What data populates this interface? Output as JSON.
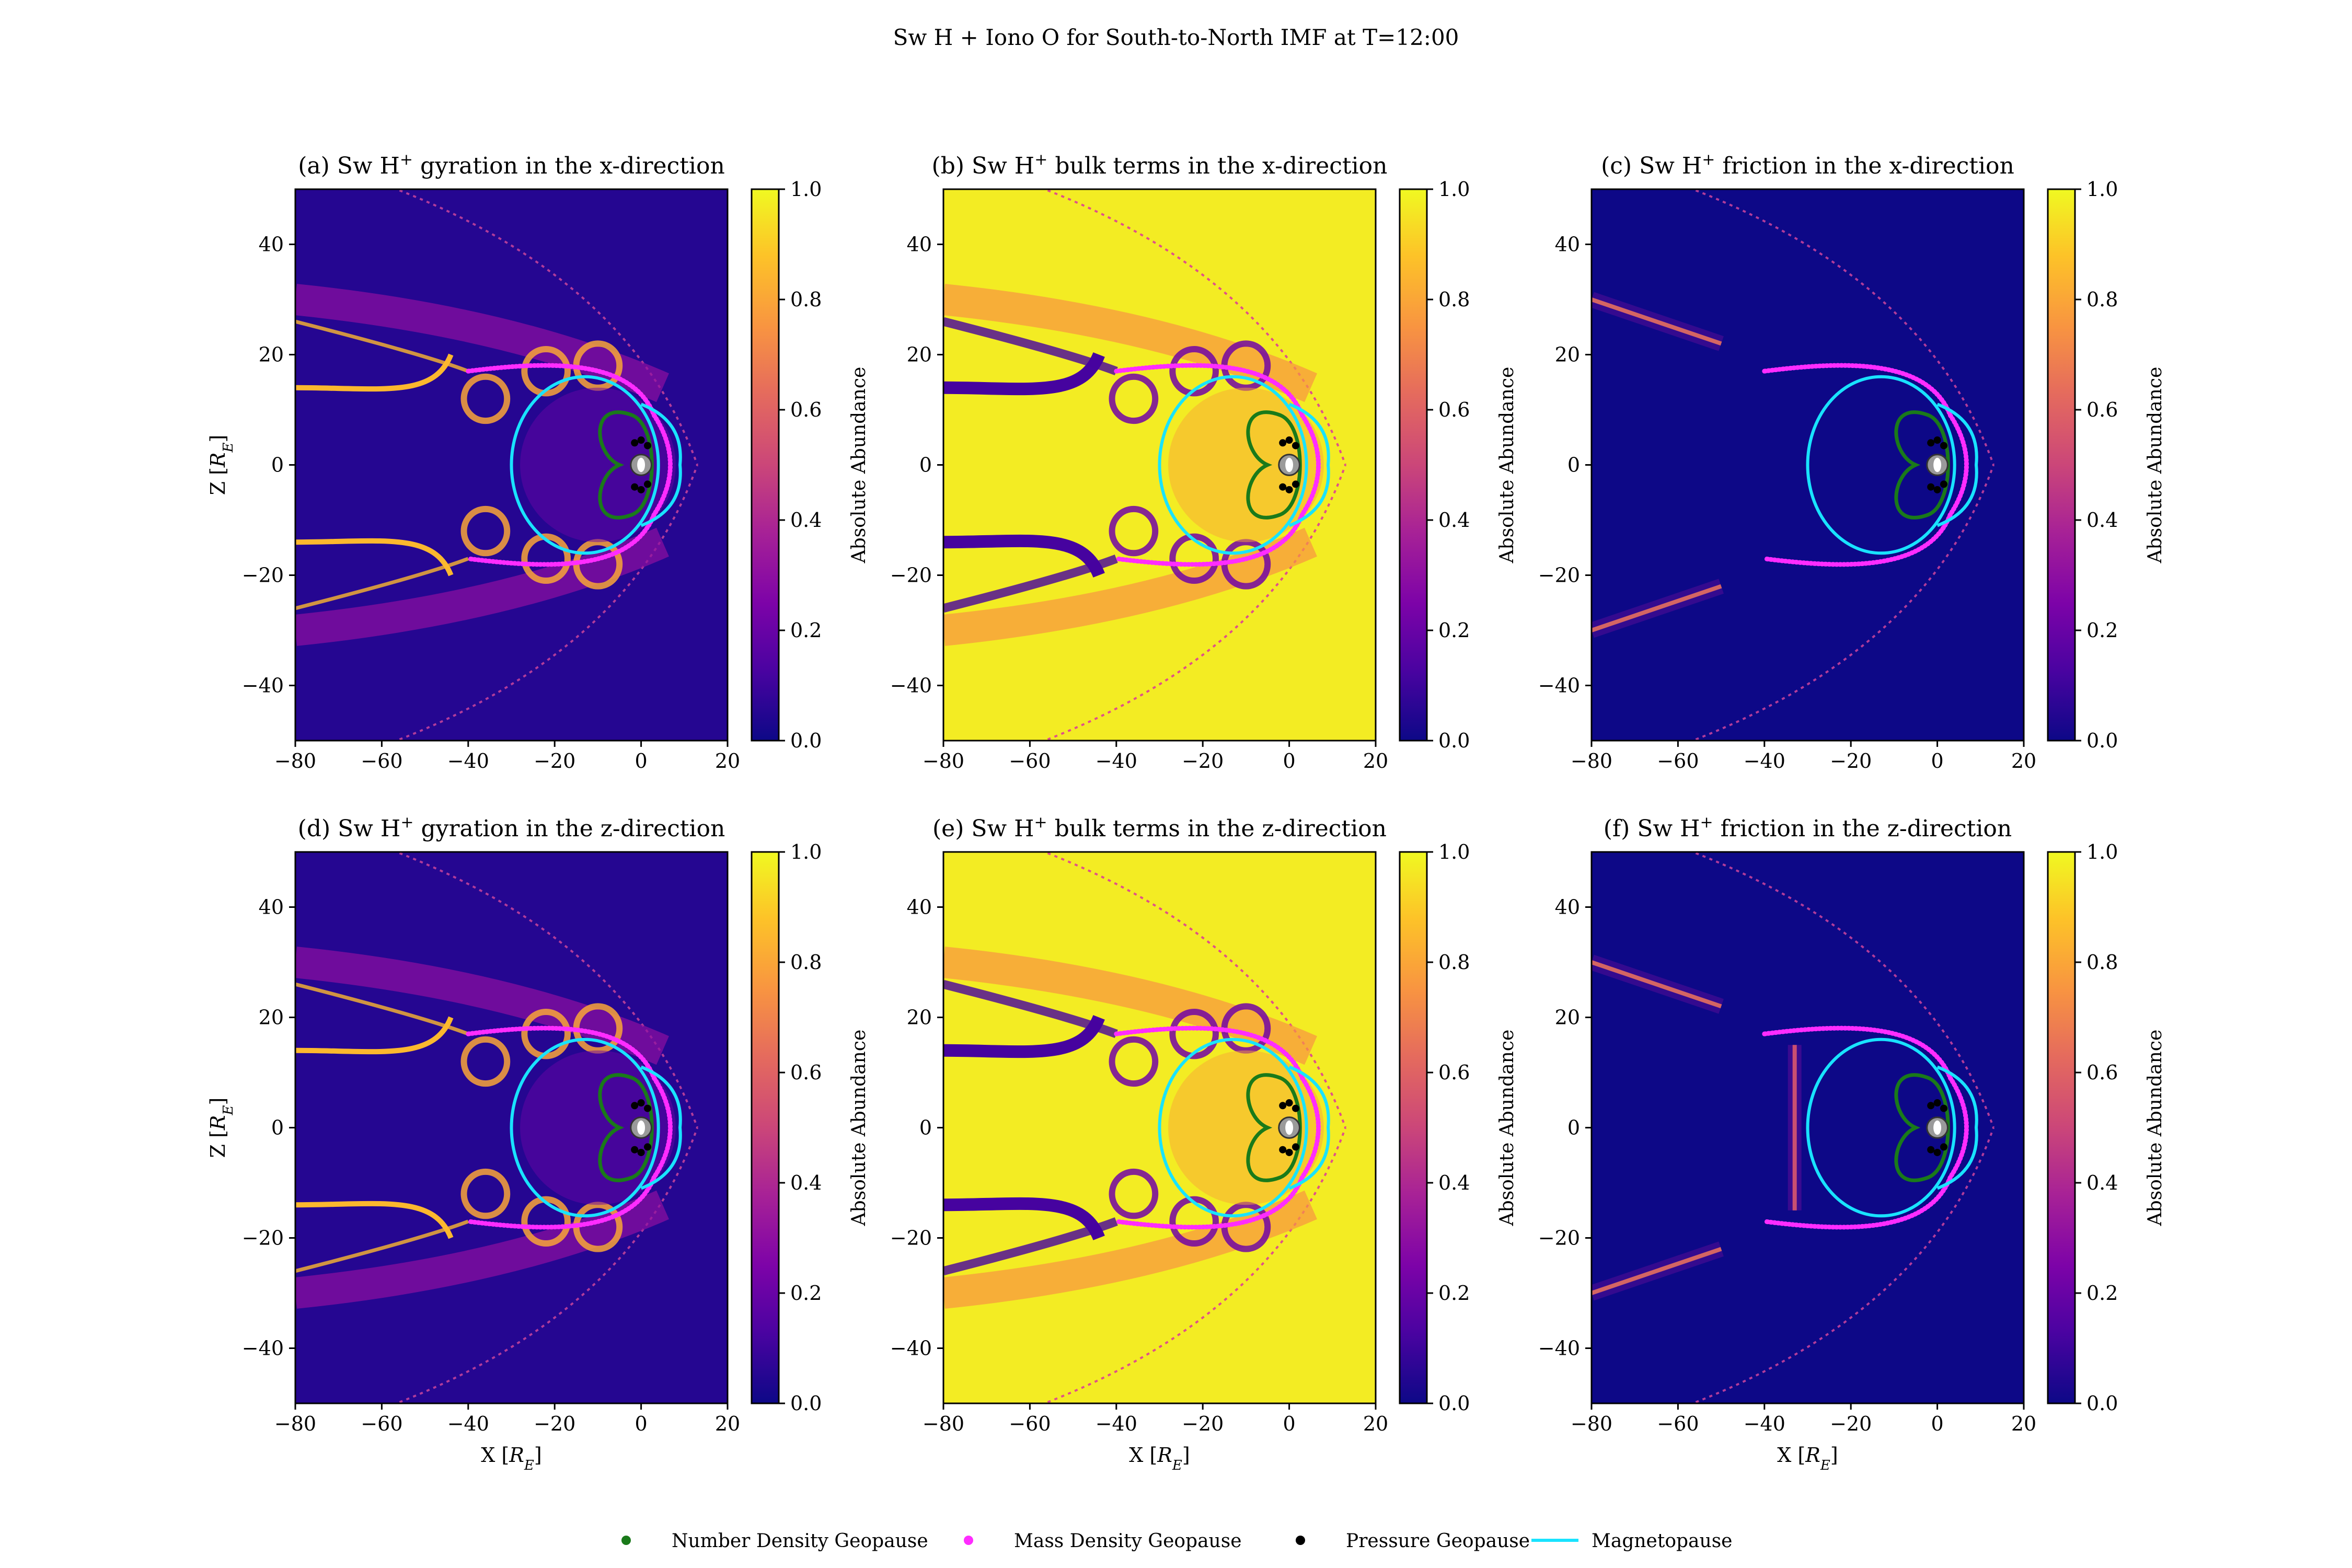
{
  "figure": {
    "title": "Sw H + Iono O for South-to-North IMF at T=12:00",
    "legend": [
      {
        "label": "Number Density Geopause",
        "marker": "dot",
        "color": "#1a7a1a"
      },
      {
        "label": "Mass Density Geopause",
        "marker": "dot",
        "color": "#ff2cff"
      },
      {
        "label": "Pressure Geopause",
        "marker": "dot",
        "color": "#000000"
      },
      {
        "label": "Magnetopause",
        "marker": "line",
        "color": "#19e3ff"
      }
    ]
  },
  "chart_data": [
    {
      "type": "heatmap",
      "panel": "a",
      "title": "(a) Sw H+ gyration in the x-direction",
      "title_parts": [
        "(a) Sw H",
        "+",
        " gyration in the x-direction"
      ],
      "xlabel": "",
      "ylabel": "Z [R_E]",
      "xlim": [
        -80,
        20
      ],
      "ylim": [
        -50,
        50
      ],
      "xticks": [
        -80,
        -60,
        -40,
        -20,
        0,
        20
      ],
      "yticks": [
        -40,
        -20,
        0,
        20,
        40
      ],
      "colorbar": {
        "label": "Absolute Abundance",
        "range": [
          0.0,
          1.0
        ],
        "ticks": [
          "0.0",
          "0.2",
          "0.4",
          "0.6",
          "0.8",
          "1.0"
        ],
        "colormap": "plasma"
      },
      "background_level": 0.05,
      "magnetopause_standoff_x": 9,
      "features": [
        "tail streaks at Z=±14",
        "bright cusp regions near X=-35"
      ]
    },
    {
      "type": "heatmap",
      "panel": "b",
      "title": "(b) Sw H+ bulk terms in the x-direction",
      "title_parts": [
        "(b) Sw H",
        "+",
        " bulk terms in the x-direction"
      ],
      "xlabel": "",
      "ylabel": "",
      "xlim": [
        -80,
        20
      ],
      "ylim": [
        -50,
        50
      ],
      "xticks": [
        -80,
        -60,
        -40,
        -20,
        0,
        20
      ],
      "yticks": [
        -40,
        -20,
        0,
        20,
        40
      ],
      "colorbar": {
        "label": "Absolute Abundance",
        "range": [
          0.0,
          1.0
        ],
        "ticks": [
          "0.0",
          "0.2",
          "0.4",
          "0.6",
          "0.8",
          "1.0"
        ],
        "colormap": "plasma"
      },
      "background_level": 0.97,
      "magnetopause_standoff_x": 9,
      "features": [
        "dark tail lanes",
        "dark cusp patches"
      ]
    },
    {
      "type": "heatmap",
      "panel": "c",
      "title": "(c) Sw H+ friction in the x-direction",
      "title_parts": [
        "(c) Sw H",
        "+",
        " friction in the x-direction"
      ],
      "xlabel": "",
      "ylabel": "",
      "xlim": [
        -80,
        20
      ],
      "ylim": [
        -50,
        50
      ],
      "xticks": [
        -80,
        -60,
        -40,
        -20,
        0,
        20
      ],
      "yticks": [
        -40,
        -20,
        0,
        20,
        40
      ],
      "colorbar": {
        "label": "Absolute Abundance",
        "range": [
          0.0,
          1.0
        ],
        "ticks": [
          "0.0",
          "0.2",
          "0.4",
          "0.6",
          "0.8",
          "1.0"
        ],
        "colormap": "plasma"
      },
      "background_level": 0.0,
      "magnetopause_standoff_x": 9,
      "features": [
        "thin diagonal streaks at far tail"
      ]
    },
    {
      "type": "heatmap",
      "panel": "d",
      "title": "(d) Sw H+ gyration in the z-direction",
      "title_parts": [
        "(d) Sw H",
        "+",
        " gyration in the z-direction"
      ],
      "xlabel": "X [R_E]",
      "ylabel": "Z [R_E]",
      "xlim": [
        -80,
        20
      ],
      "ylim": [
        -50,
        50
      ],
      "xticks": [
        -80,
        -60,
        -40,
        -20,
        0,
        20
      ],
      "yticks": [
        -40,
        -20,
        0,
        20,
        40
      ],
      "colorbar": {
        "label": "Absolute Abundance",
        "range": [
          0.0,
          1.0
        ],
        "ticks": [
          "0.0",
          "0.2",
          "0.4",
          "0.6",
          "0.8",
          "1.0"
        ],
        "colormap": "plasma"
      },
      "background_level": 0.05,
      "magnetopause_standoff_x": 9,
      "features": [
        "tail streaks at Z=±14",
        "bright cusp regions"
      ]
    },
    {
      "type": "heatmap",
      "panel": "e",
      "title": "(e) Sw H+ bulk terms in the z-direction",
      "title_parts": [
        "(e) Sw H",
        "+",
        " bulk terms in the z-direction"
      ],
      "xlabel": "X [R_E]",
      "ylabel": "",
      "xlim": [
        -80,
        20
      ],
      "ylim": [
        -50,
        50
      ],
      "xticks": [
        -80,
        -60,
        -40,
        -20,
        0,
        20
      ],
      "yticks": [
        -40,
        -20,
        0,
        20,
        40
      ],
      "colorbar": {
        "label": "Absolute Abundance",
        "range": [
          0.0,
          1.0
        ],
        "ticks": [
          "0.0",
          "0.2",
          "0.4",
          "0.6",
          "0.8",
          "1.0"
        ],
        "colormap": "plasma"
      },
      "background_level": 0.97,
      "magnetopause_standoff_x": 9,
      "features": [
        "dark tail lanes",
        "dark cusp patches"
      ]
    },
    {
      "type": "heatmap",
      "panel": "f",
      "title": "(f) Sw H+ friction in the z-direction",
      "title_parts": [
        "(f) Sw H",
        "+",
        " friction in the z-direction"
      ],
      "xlabel": "X [R_E]",
      "ylabel": "",
      "xlim": [
        -80,
        20
      ],
      "ylim": [
        -50,
        50
      ],
      "xticks": [
        -80,
        -60,
        -40,
        -20,
        0,
        20
      ],
      "yticks": [
        -40,
        -20,
        0,
        20,
        40
      ],
      "colorbar": {
        "label": "Absolute Abundance",
        "range": [
          0.0,
          1.0
        ],
        "ticks": [
          "0.0",
          "0.2",
          "0.4",
          "0.6",
          "0.8",
          "1.0"
        ],
        "colormap": "plasma"
      },
      "background_level": 0.0,
      "magnetopause_standoff_x": 9,
      "features": [
        "thin diagonal streaks at far tail",
        "bright band near X=-33"
      ]
    }
  ]
}
